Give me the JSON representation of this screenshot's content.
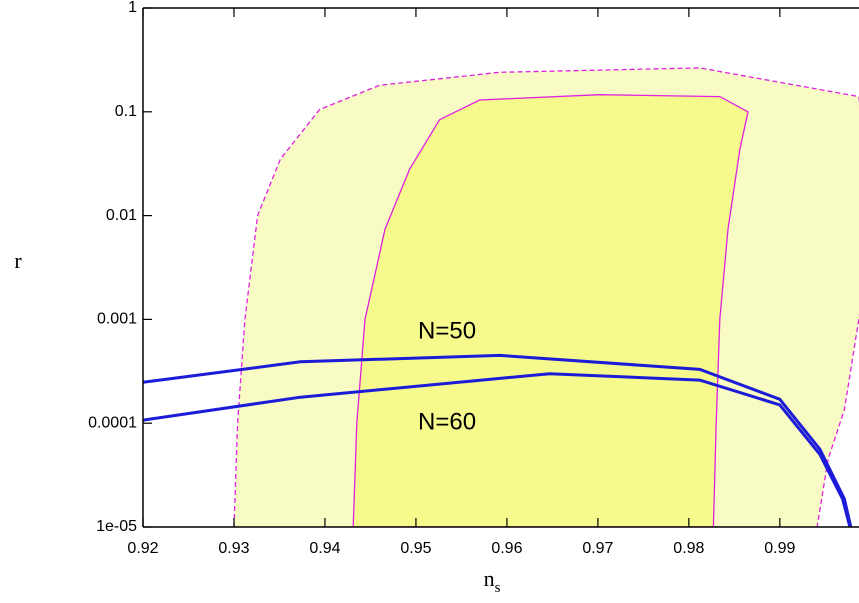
{
  "chart_data": {
    "type": "contour-line",
    "x_label": "n",
    "x_label_subscript": "s",
    "y_label": "r",
    "xlim": [
      0.92,
      0.9987
    ],
    "xticks": [
      0.92,
      0.93,
      0.94,
      0.95,
      0.96,
      0.97,
      0.98,
      0.99
    ],
    "ylim": [
      1e-05,
      1
    ],
    "yticks": [
      {
        "value": 1e-05,
        "label": "1e-05"
      },
      0.0001,
      0.001,
      0.01,
      0.1,
      1
    ],
    "y_scale": "log",
    "regions": [
      {
        "fill": "#f9fbc4",
        "color": "#e020e0",
        "dashed": true,
        "x": [
          0.93,
          0.9304,
          0.9312,
          0.9326,
          0.9351,
          0.9394,
          0.946,
          0.9592,
          0.9812,
          0.9987,
          0.9999,
          0.9971,
          0.9953,
          0.9941
        ],
        "values": [
          1e-05,
          0.0001,
          0.001,
          0.01,
          0.035,
          0.105,
          0.18,
          0.24,
          0.265,
          0.14,
          0.0047,
          0.000135,
          4.5e-05,
          1e-05
        ]
      },
      {
        "fill": "#f6f98c",
        "color": "#e020e0",
        "dashed": false,
        "x": [
          0.9431,
          0.9435,
          0.9444,
          0.9466,
          0.9493,
          0.9526,
          0.957,
          0.9702,
          0.9834,
          0.9865,
          0.9856,
          0.9843,
          0.9834,
          0.983,
          0.9827
        ],
        "values": [
          1e-05,
          0.0001,
          0.001,
          0.0074,
          0.028,
          0.084,
          0.13,
          0.146,
          0.14,
          0.1,
          0.043,
          0.0074,
          0.001,
          0.0001,
          1e-05
        ]
      }
    ],
    "series": [
      {
        "name": "N=50",
        "color": "#1c1cd8",
        "x": [
          0.92,
          0.9373,
          0.9592,
          0.9812,
          0.99,
          0.9944,
          0.9971,
          0.9978
        ],
        "values": [
          0.000248,
          0.00039,
          0.00045,
          0.00033,
          0.00017,
          5.6e-05,
          1.86e-05,
          1e-05
        ]
      },
      {
        "name": "N=60",
        "color": "#1c1cd8",
        "x": [
          0.92,
          0.9373,
          0.9647,
          0.9812,
          0.99,
          0.9944,
          0.9969,
          0.9977
        ],
        "values": [
          0.000107,
          0.000178,
          0.0003,
          0.00026,
          0.00015,
          5e-05,
          1.86e-05,
          1e-05
        ]
      }
    ]
  }
}
